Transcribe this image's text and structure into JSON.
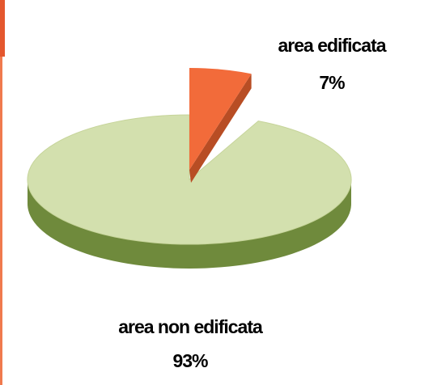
{
  "chart_data": {
    "type": "pie",
    "title": "",
    "style": "3d",
    "slices": [
      {
        "label": "area edificata",
        "value": 7,
        "value_label": "7%",
        "color": "#f26b3a",
        "side_color": "#b84d24",
        "exploded": true
      },
      {
        "label": "area non edificata",
        "value": 93,
        "value_label": "93%",
        "color": "#d3e0ae",
        "side_color": "#6f8a3c",
        "exploded": false
      }
    ]
  }
}
